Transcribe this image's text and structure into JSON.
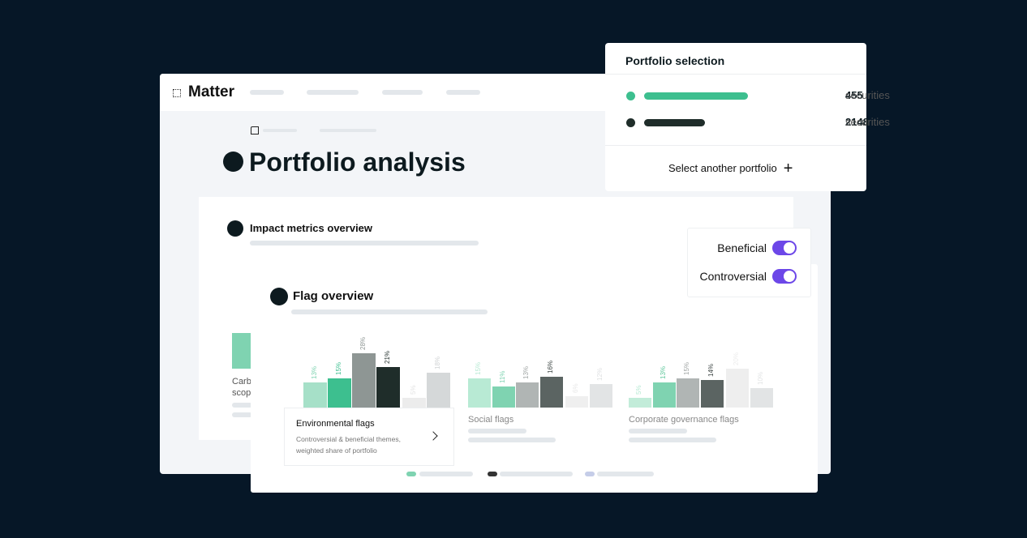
{
  "brand": "Matter",
  "page_title": "Portfolio analysis",
  "impact": {
    "title": "Impact metrics overview",
    "truncated_lines": [
      "Carb",
      "scop"
    ]
  },
  "toggles": [
    {
      "label": "Beneficial",
      "on": true
    },
    {
      "label": "Controversial",
      "on": true
    }
  ],
  "portfolio_selection": {
    "title": "Portfolio selection",
    "items": [
      {
        "count": 455,
        "unit": "securities",
        "color": "#3dbf8f"
      },
      {
        "count": 2148,
        "unit": "securities",
        "color": "#1f2d2a"
      }
    ],
    "action": "Select another portfolio"
  },
  "flag_overview": {
    "title": "Flag overview",
    "groups": [
      {
        "name": "Environmental flags",
        "description": "Controversial & beneficial themes, weighted share of portfolio",
        "values": [
          13,
          15,
          28,
          21,
          5,
          18
        ],
        "value_labels": [
          "13%",
          "15%",
          "28%",
          "21%",
          "5%",
          "18%"
        ],
        "colors": [
          "#a6e0c8",
          "#3dbf8f",
          "#8e9694",
          "#1f2d2a",
          "#ececec",
          "#d5d8d9"
        ],
        "label_colors": [
          "#7fd3b1",
          "#3dbf8f",
          "#8e9694",
          "#1f2d2a",
          "#e4e4e4",
          "#d0d3d4"
        ]
      },
      {
        "name": "Social flags",
        "values": [
          15,
          11,
          13,
          16,
          6,
          12
        ],
        "value_labels": [
          "15%",
          "11%",
          "13%",
          "16%",
          "6%",
          "12%"
        ],
        "colors": [
          "#b8ead4",
          "#7fd3b1",
          "#b0b5b4",
          "#5b6462",
          "#efefef",
          "#e2e4e5"
        ],
        "label_colors": [
          "#b8ead4",
          "#7fd3b1",
          "#a0a5a4",
          "#3d4644",
          "#e8e8e8",
          "#dfe1e2"
        ]
      },
      {
        "name": "Corporate governance flags",
        "values": [
          5,
          13,
          15,
          14,
          20,
          10
        ],
        "value_labels": [
          "5%",
          "13%",
          "15%",
          "14%",
          "20%",
          "10%"
        ],
        "colors": [
          "#c2ecd9",
          "#7fd3b1",
          "#b0b5b4",
          "#5b6462",
          "#eeeeee",
          "#e2e4e5"
        ],
        "label_colors": [
          "#b8ead4",
          "#5fc79c",
          "#a0a5a4",
          "#3d4644",
          "#ececec",
          "#e2e4e5"
        ]
      }
    ]
  }
}
